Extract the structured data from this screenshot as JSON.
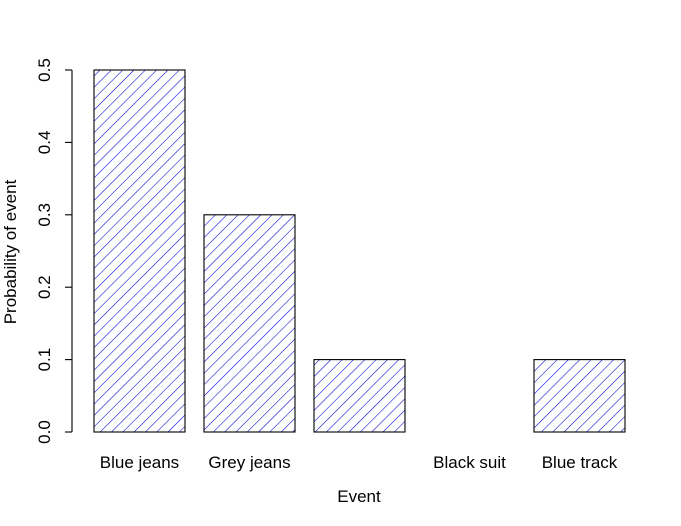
{
  "chart_data": {
    "type": "bar",
    "title": "",
    "xlabel": "Event",
    "ylabel": "Probability of event",
    "categories": [
      "Blue jeans",
      "Grey jeans",
      "",
      "Black suit",
      "Blue track"
    ],
    "values": [
      0.5,
      0.3,
      0.1,
      0.0,
      0.1
    ],
    "ylim": [
      0,
      0.5
    ],
    "yticks": [
      0.0,
      0.1,
      0.2,
      0.3,
      0.4,
      0.5
    ],
    "ytick_labels": [
      "0.0",
      "0.1",
      "0.2",
      "0.3",
      "0.4",
      "0.5"
    ],
    "grid": false,
    "legend": "none",
    "bar_fill": "hatched",
    "hatch_color": "#0000cd",
    "bar_border_color": "#000000"
  }
}
